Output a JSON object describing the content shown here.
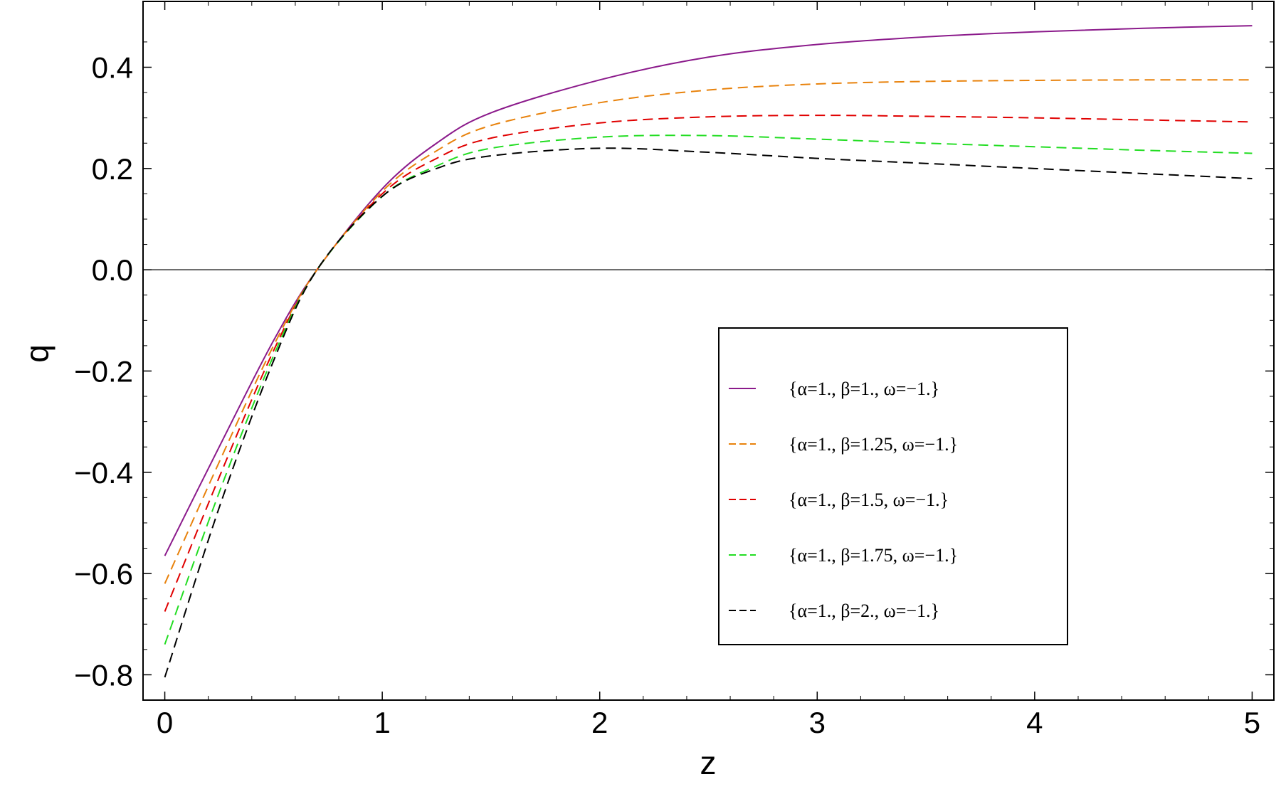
{
  "chart_data": {
    "type": "line",
    "title": "",
    "xlabel": "z",
    "ylabel": "q",
    "xlim": [
      -0.1,
      5.1
    ],
    "ylim": [
      -0.85,
      0.53
    ],
    "xticks": [
      0,
      1,
      2,
      3,
      4,
      5
    ],
    "xtick_labels": [
      "0",
      "1",
      "2",
      "3",
      "4",
      "5"
    ],
    "yticks": [
      -0.8,
      -0.6,
      -0.4,
      -0.2,
      0.0,
      0.2,
      0.4
    ],
    "ytick_labels": [
      "−0.8",
      "−0.6",
      "−0.4",
      "−0.2",
      "0.0",
      "0.2",
      "0.4"
    ],
    "grid": false,
    "zero_line": true,
    "legend_position": "bottom-right",
    "x": [
      0,
      0.25,
      0.5,
      0.7,
      1.0,
      1.25,
      1.5,
      2.0,
      2.5,
      3.0,
      3.5,
      4.0,
      4.5,
      5.0
    ],
    "series": [
      {
        "name": "{α=1., β=1., ω=−1.}",
        "color": "#8b1a8b",
        "dash": "solid",
        "values": [
          -0.565,
          -0.35,
          -0.14,
          0.0,
          0.16,
          0.25,
          0.31,
          0.375,
          0.42,
          0.445,
          0.46,
          0.47,
          0.477,
          0.482
        ]
      },
      {
        "name": "{α=1., β=1.25, ω=−1.}",
        "color": "#e8820c",
        "dash": "dashed",
        "values": [
          -0.62,
          -0.38,
          -0.15,
          0.0,
          0.155,
          0.235,
          0.285,
          0.33,
          0.355,
          0.367,
          0.372,
          0.374,
          0.375,
          0.375
        ]
      },
      {
        "name": "{α=1., β=1.5, ω=−1.}",
        "color": "#e00000",
        "dash": "dashed",
        "values": [
          -0.675,
          -0.41,
          -0.16,
          0.0,
          0.15,
          0.22,
          0.26,
          0.29,
          0.302,
          0.305,
          0.303,
          0.3,
          0.296,
          0.292
        ]
      },
      {
        "name": "{α=1., β=1.75, ω=−1.}",
        "color": "#22dd22",
        "dash": "dashed",
        "values": [
          -0.74,
          -0.44,
          -0.17,
          0.0,
          0.145,
          0.205,
          0.24,
          0.262,
          0.265,
          0.258,
          0.25,
          0.243,
          0.236,
          0.23
        ]
      },
      {
        "name": "{α=1., β=2., ω=−1.}",
        "color": "#000000",
        "dash": "dashed",
        "values": [
          -0.805,
          -0.47,
          -0.18,
          0.0,
          0.145,
          0.2,
          0.225,
          0.24,
          0.232,
          0.22,
          0.21,
          0.2,
          0.19,
          0.18
        ]
      }
    ]
  }
}
